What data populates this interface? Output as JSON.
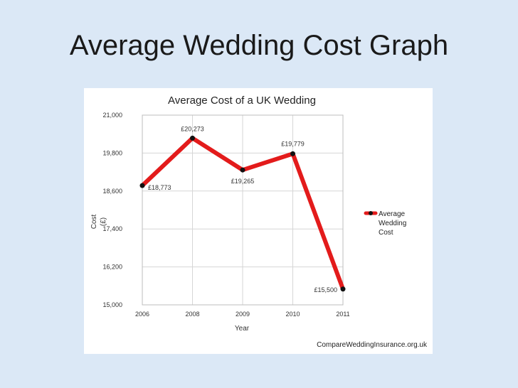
{
  "slide": {
    "title": "Average Wedding Cost Graph"
  },
  "chart_data": {
    "type": "line",
    "title": "Average Cost of a UK Wedding",
    "xlabel": "Year",
    "ylabel": "Cost",
    "ylabel_unit": "(£)",
    "categories": [
      "2006",
      "2008",
      "2009",
      "2010",
      "2011"
    ],
    "ylim": [
      15000,
      21000
    ],
    "yticks": [
      15000,
      16200,
      17400,
      18600,
      19800,
      21000
    ],
    "ytick_labels": [
      "15,000",
      "16,200",
      "17,400",
      "18,600",
      "19,800",
      "21,000"
    ],
    "grid": true,
    "legend_position": "right",
    "series": [
      {
        "name": "Average Wedding Cost",
        "name_lines": [
          "Average",
          "Wedding",
          "Cost"
        ],
        "values": [
          18773,
          20273,
          19265,
          19779,
          15500
        ],
        "data_labels": [
          "£18,773",
          "£20,273",
          "£19,265",
          "£19,779",
          "£15,500"
        ],
        "color": "#e31b1b"
      }
    ],
    "source": "CompareWeddingInsurance.org.uk"
  }
}
